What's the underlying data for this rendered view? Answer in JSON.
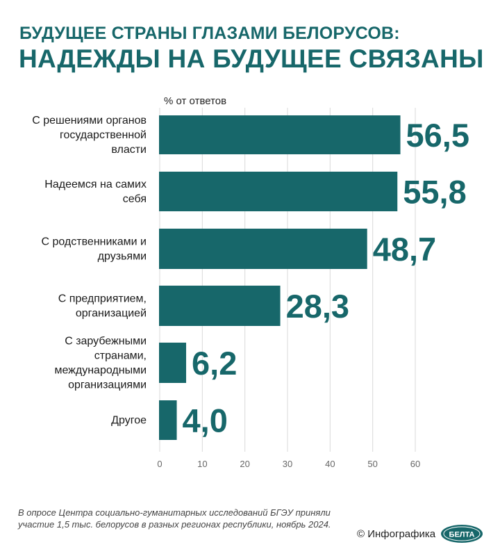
{
  "header": {
    "title_line1": "БУДУЩЕЕ СТРАНЫ ГЛАЗАМИ БЕЛОРУСОВ:",
    "title_line2": "НАДЕЖДЫ НА БУДУЩЕЕ СВЯЗАНЫ"
  },
  "chart_data": {
    "type": "bar",
    "orientation": "horizontal",
    "unit_label": "% от ответов",
    "categories": [
      [
        "С решениями органов",
        "государственной",
        "власти"
      ],
      [
        "Надеемся на самих",
        "себя"
      ],
      [
        "С родственниками и",
        "друзьями"
      ],
      [
        "С предприятием,",
        "организацией"
      ],
      [
        "С зарубежными",
        "странами,",
        "международными",
        "организациями"
      ],
      [
        "Другое"
      ]
    ],
    "values": [
      56.5,
      55.8,
      48.7,
      28.3,
      6.2,
      4.0
    ],
    "value_labels": [
      "56,5",
      "55,8",
      "48,7",
      "28,3",
      "6,2",
      "4,0"
    ],
    "xlim": [
      0,
      60
    ],
    "xticks": [
      0,
      10,
      20,
      30,
      40,
      50,
      60
    ],
    "grid": true,
    "bar_color": "#17676a",
    "label_color": "#17676a"
  },
  "footer": {
    "note": "В опросе Центра социально-гуманитарных исследований БГЭУ приняли участие 1,5 тыс. белорусов в разных регионах республики, ноябрь 2024.",
    "credit": "© Инфографика",
    "logo_text": "БЕЛТА"
  },
  "colors": {
    "accent": "#17676a",
    "grid": "#d9d9d9"
  }
}
